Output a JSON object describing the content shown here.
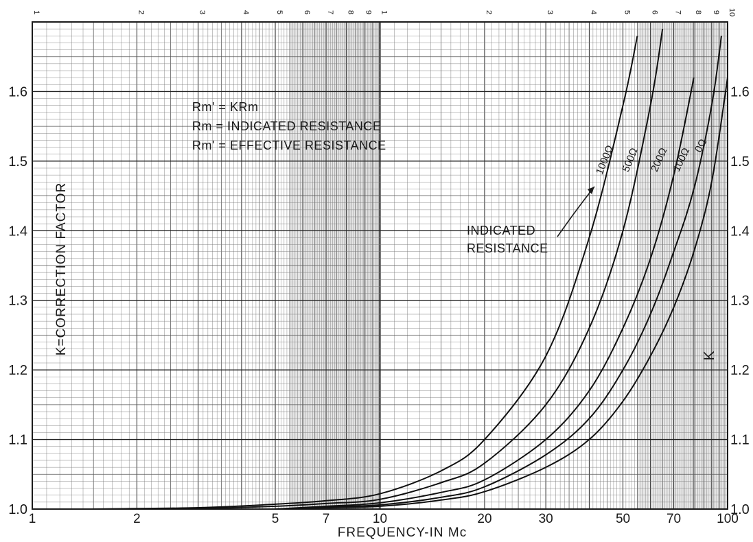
{
  "chart_data": {
    "type": "line",
    "title": "",
    "xlabel": "FREQUENCY-IN Mc",
    "ylabel": "K=CORRECTION FACTOR",
    "ylabel_right": "K",
    "x_scale": "log",
    "xlim": [
      1,
      100
    ],
    "ylim": [
      1.0,
      1.7
    ],
    "grid": true,
    "x_ticks_bottom": [
      "1",
      "2",
      "5",
      "7",
      "10",
      "20",
      "30",
      "50",
      "70",
      "100"
    ],
    "x_ticks_top": [
      "1",
      "2",
      "3",
      "4",
      "5",
      "6",
      "7",
      "8",
      "9",
      "1",
      "2",
      "3",
      "4",
      "5",
      "6",
      "7",
      "8",
      "9",
      "10"
    ],
    "y_ticks_left": [
      "1.0",
      "1.1",
      "1.2",
      "1.3",
      "1.4",
      "1.5",
      "1.6"
    ],
    "y_ticks_right": [
      "1.0",
      "1.1",
      "1.2",
      "1.3",
      "1.4",
      "1.5",
      "1.6"
    ],
    "annotations": {
      "formula_line1": "Rm' = KRm",
      "formula_line2": "Rm = INDICATED RESISTANCE",
      "formula_line3": "Rm' = EFFECTIVE RESISTANCE",
      "indicated_line1": "INDICATED",
      "indicated_line2": "RESISTANCE"
    },
    "series": [
      {
        "name": "1000Ω",
        "x": [
          1.5,
          3,
          5,
          7,
          10,
          15,
          20,
          30,
          40,
          50,
          55
        ],
        "y": [
          1.0,
          1.002,
          1.007,
          1.012,
          1.022,
          1.055,
          1.1,
          1.22,
          1.39,
          1.58,
          1.68
        ]
      },
      {
        "name": "500Ω",
        "x": [
          1.5,
          3,
          5,
          7,
          10,
          15,
          20,
          30,
          40,
          50,
          60,
          65
        ],
        "y": [
          1.0,
          1.001,
          1.004,
          1.008,
          1.014,
          1.038,
          1.066,
          1.15,
          1.26,
          1.4,
          1.58,
          1.69
        ]
      },
      {
        "name": "200Ω",
        "x": [
          5,
          7,
          10,
          15,
          20,
          30,
          40,
          50,
          60,
          70,
          80
        ],
        "y": [
          1.0,
          1.004,
          1.009,
          1.024,
          1.042,
          1.1,
          1.17,
          1.26,
          1.36,
          1.48,
          1.62
        ]
      },
      {
        "name": "100Ω",
        "x": [
          5,
          7,
          10,
          15,
          20,
          30,
          40,
          50,
          60,
          70,
          80,
          90,
          96
        ],
        "y": [
          1.0,
          1.003,
          1.006,
          1.017,
          1.032,
          1.078,
          1.13,
          1.2,
          1.28,
          1.37,
          1.46,
          1.58,
          1.68
        ]
      },
      {
        "name": "0Ω",
        "x": [
          5,
          7,
          10,
          15,
          20,
          30,
          40,
          50,
          60,
          70,
          80,
          90,
          100
        ],
        "y": [
          1.0,
          1.002,
          1.004,
          1.013,
          1.025,
          1.06,
          1.1,
          1.155,
          1.22,
          1.29,
          1.37,
          1.47,
          1.62
        ]
      }
    ]
  }
}
